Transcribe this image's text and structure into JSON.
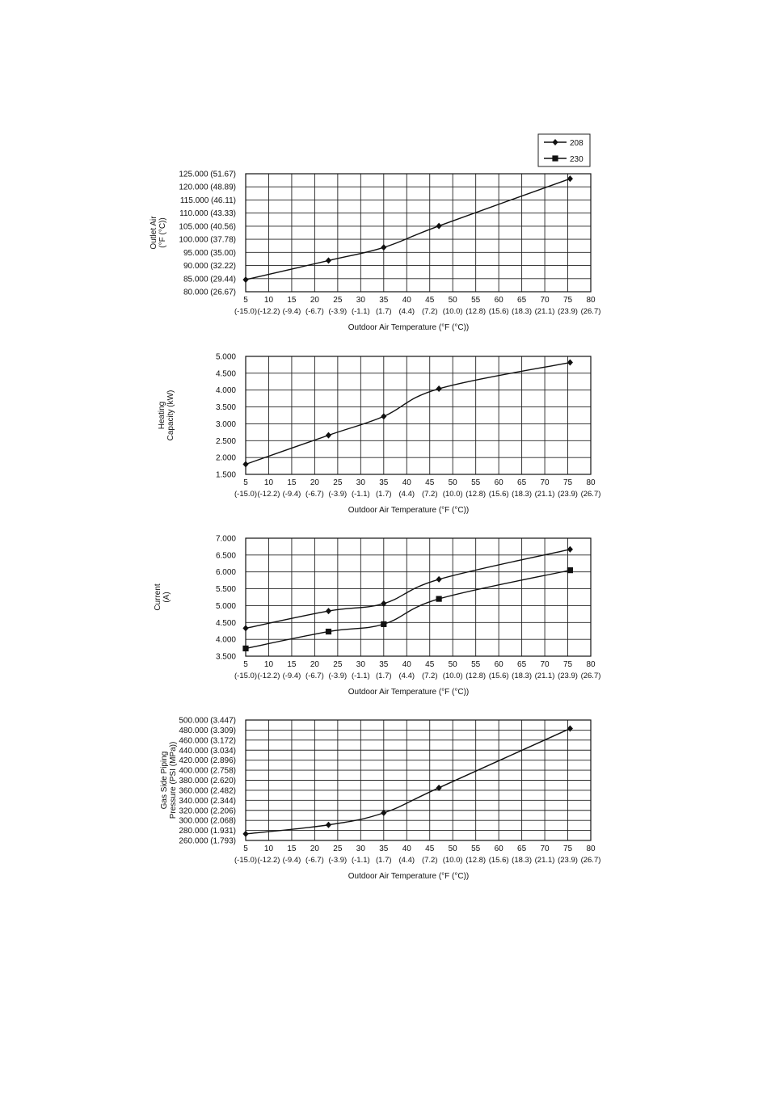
{
  "legend": [
    {
      "label": "208",
      "marker": "diamond"
    },
    {
      "label": "230",
      "marker": "square"
    }
  ],
  "chart_data": [
    {
      "type": "line",
      "ylabel": [
        "Outlet Air",
        "(°F (°C))"
      ],
      "xlabel": "Outdoor Air Temperature (°F (°C))",
      "xlim": [
        5,
        80
      ],
      "ylim": [
        80,
        125
      ],
      "x_ticks": [
        5,
        10,
        15,
        20,
        25,
        30,
        35,
        40,
        45,
        50,
        55,
        60,
        65,
        70,
        75,
        80
      ],
      "x_tick_sublabels": [
        "(-15.0)",
        "(-12.2)",
        "(-9.4)",
        "(-6.7)",
        "(-3.9)",
        "(-1.1)",
        "(1.7)",
        "(4.4)",
        "(7.2)",
        "(10.0)",
        "(12.8)",
        "(15.6)",
        "(18.3)",
        "(21.1)",
        "(23.9)",
        "(26.7)"
      ],
      "y_ticks": [
        80,
        85,
        90,
        95,
        100,
        105,
        110,
        115,
        120,
        125
      ],
      "y_tick_labels": [
        "80.000 (26.67)",
        "85.000 (29.44)",
        "90.000 (32.22)",
        "95.000 (35.00)",
        "100.000 (37.78)",
        "105.000 (40.56)",
        "110.000 (43.33)",
        "115.000 (46.11)",
        "120.000 (48.89)",
        "125.000 (51.67)"
      ],
      "grid": true,
      "series": [
        {
          "marker": "diamond",
          "x": [
            5,
            23,
            35,
            47,
            75.5
          ],
          "y": [
            84.6,
            91.9,
            96.9,
            105.1,
            123.1
          ]
        }
      ]
    },
    {
      "type": "line",
      "ylabel": [
        "Heating",
        "Capacity (kW)"
      ],
      "xlabel": "Outdoor Air Temperature (°F (°C))",
      "xlim": [
        5,
        80
      ],
      "ylim": [
        1.5,
        5.0
      ],
      "x_ticks": [
        5,
        10,
        15,
        20,
        25,
        30,
        35,
        40,
        45,
        50,
        55,
        60,
        65,
        70,
        75,
        80
      ],
      "x_tick_sublabels": [
        "(-15.0)",
        "(-12.2)",
        "(-9.4)",
        "(-6.7)",
        "(-3.9)",
        "(-1.1)",
        "(1.7)",
        "(4.4)",
        "(7.2)",
        "(10.0)",
        "(12.8)",
        "(15.6)",
        "(18.3)",
        "(21.1)",
        "(23.9)",
        "(26.7)"
      ],
      "y_ticks": [
        1.5,
        2.0,
        2.5,
        3.0,
        3.5,
        4.0,
        4.5,
        5.0
      ],
      "y_tick_labels": [
        "1.500",
        "2.000",
        "2.500",
        "3.000",
        "3.500",
        "4.000",
        "4.500",
        "5.000"
      ],
      "grid": true,
      "series": [
        {
          "marker": "diamond",
          "x": [
            5,
            23,
            35,
            47,
            75.5
          ],
          "y": [
            1.8,
            2.66,
            3.22,
            4.04,
            4.82
          ]
        }
      ]
    },
    {
      "type": "line",
      "ylabel": [
        "Current",
        "(A)"
      ],
      "xlabel": "Outdoor Air Temperature (°F (°C))",
      "xlim": [
        5,
        80
      ],
      "ylim": [
        3.5,
        7.0
      ],
      "x_ticks": [
        5,
        10,
        15,
        20,
        25,
        30,
        35,
        40,
        45,
        50,
        55,
        60,
        65,
        70,
        75,
        80
      ],
      "x_tick_sublabels": [
        "(-15.0)",
        "(-12.2)",
        "(-9.4)",
        "(-6.7)",
        "(-3.9)",
        "(-1.1)",
        "(1.7)",
        "(4.4)",
        "(7.2)",
        "(10.0)",
        "(12.8)",
        "(15.6)",
        "(18.3)",
        "(21.1)",
        "(23.9)",
        "(26.7)"
      ],
      "y_ticks": [
        3.5,
        4.0,
        4.5,
        5.0,
        5.5,
        6.0,
        6.5,
        7.0
      ],
      "y_tick_labels": [
        "3.500",
        "4.000",
        "4.500",
        "5.000",
        "5.500",
        "6.000",
        "6.500",
        "7.000"
      ],
      "grid": true,
      "series": [
        {
          "marker": "diamond",
          "x": [
            5,
            23,
            35,
            47,
            75.5
          ],
          "y": [
            4.33,
            4.84,
            5.06,
            5.78,
            6.67
          ]
        },
        {
          "marker": "square",
          "x": [
            5,
            23,
            35,
            47,
            75.5
          ],
          "y": [
            3.73,
            4.23,
            4.45,
            5.2,
            6.05
          ]
        }
      ]
    },
    {
      "type": "line",
      "ylabel": [
        "Gas Side Piping",
        "Pressure (PSI (MPa))"
      ],
      "xlabel": "Outdoor Air Temperature (°F (°C))",
      "xlim": [
        5,
        80
      ],
      "ylim": [
        260,
        500
      ],
      "x_ticks": [
        5,
        10,
        15,
        20,
        25,
        30,
        35,
        40,
        45,
        50,
        55,
        60,
        65,
        70,
        75,
        80
      ],
      "x_tick_sublabels": [
        "(-15.0)",
        "(-12.2)",
        "(-9.4)",
        "(-6.7)",
        "(-3.9)",
        "(-1.1)",
        "(1.7)",
        "(4.4)",
        "(7.2)",
        "(10.0)",
        "(12.8)",
        "(15.6)",
        "(18.3)",
        "(21.1)",
        "(23.9)",
        "(26.7)"
      ],
      "y_ticks": [
        260,
        280,
        300,
        320,
        340,
        360,
        380,
        400,
        420,
        440,
        460,
        480,
        500
      ],
      "y_tick_labels": [
        "260.000 (1.793)",
        "280.000 (1.931)",
        "300.000 (2.068)",
        "320.000 (2.206)",
        "340.000 (2.344)",
        "360.000 (2.482)",
        "380.000 (2.620)",
        "400.000 (2.758)",
        "420.000 (2.896)",
        "440.000 (3.034)",
        "460.000 (3.172)",
        "480.000 (3.309)",
        "500.000 (3.447)"
      ],
      "grid": true,
      "series": [
        {
          "marker": "diamond",
          "x": [
            5,
            23,
            35,
            47,
            75.5
          ],
          "y": [
            273,
            291,
            315,
            365,
            483
          ]
        }
      ]
    }
  ]
}
